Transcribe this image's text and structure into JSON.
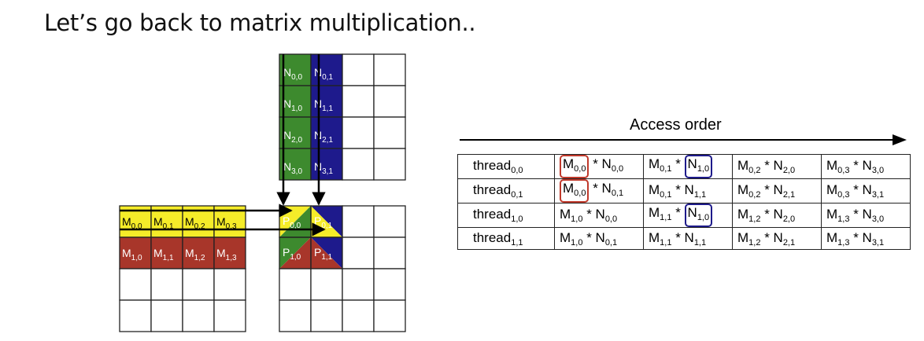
{
  "title": "Let’s go back to matrix multiplication..",
  "colors": {
    "n_col0": "#3d8a2e",
    "n_col1": "#1e1a8c",
    "m_row0": "#f5ec29",
    "m_row1": "#a8362a",
    "highlight_red": "#c0392b",
    "highlight_blue": "#1d1a8a"
  },
  "matrix_N": {
    "labels": [
      [
        "N",
        "0,0"
      ],
      [
        "N",
        "0,1"
      ],
      [
        "N",
        "1,0"
      ],
      [
        "N",
        "1,1"
      ],
      [
        "N",
        "2,0"
      ],
      [
        "N",
        "2,1"
      ],
      [
        "N",
        "3,0"
      ],
      [
        "N",
        "3,1"
      ]
    ]
  },
  "matrix_M": {
    "labels": [
      [
        "M",
        "0,0"
      ],
      [
        "M",
        "0,1"
      ],
      [
        "M",
        "0,2"
      ],
      [
        "M",
        "0,3"
      ],
      [
        "M",
        "1,0"
      ],
      [
        "M",
        "1,1"
      ],
      [
        "M",
        "1,2"
      ],
      [
        "M",
        "1,3"
      ]
    ]
  },
  "matrix_P": {
    "labels": [
      [
        "P",
        "0,0"
      ],
      [
        "P",
        "0,1"
      ],
      [
        "P",
        "1,0"
      ],
      [
        "P",
        "1,1"
      ]
    ]
  },
  "access_order": {
    "label": "Access order",
    "rows": [
      {
        "thread": [
          "thread",
          "0,0"
        ],
        "products": [
          [
            "M",
            "0,0",
            "N",
            "0,0"
          ],
          [
            "M",
            "0,1",
            "N",
            "1,0"
          ],
          [
            "M",
            "0,2",
            "N",
            "2,0"
          ],
          [
            "M",
            "0,3",
            "N",
            "3,0"
          ]
        ]
      },
      {
        "thread": [
          "thread",
          "0,1"
        ],
        "products": [
          [
            "M",
            "0,0",
            "N",
            "0,1"
          ],
          [
            "M",
            "0,1",
            "N",
            "1,1"
          ],
          [
            "M",
            "0,2",
            "N",
            "2,1"
          ],
          [
            "M",
            "0,3",
            "N",
            "3,1"
          ]
        ]
      },
      {
        "thread": [
          "thread",
          "1,0"
        ],
        "products": [
          [
            "M",
            "1,0",
            "N",
            "0,0"
          ],
          [
            "M",
            "1,1",
            "N",
            "1,0"
          ],
          [
            "M",
            "1,2",
            "N",
            "2,0"
          ],
          [
            "M",
            "1,3",
            "N",
            "3,0"
          ]
        ]
      },
      {
        "thread": [
          "thread",
          "1,1"
        ],
        "products": [
          [
            "M",
            "1,0",
            "N",
            "0,1"
          ],
          [
            "M",
            "1,1",
            "N",
            "1,1"
          ],
          [
            "M",
            "1,2",
            "N",
            "2,1"
          ],
          [
            "M",
            "1,3",
            "N",
            "3,1"
          ]
        ]
      }
    ],
    "highlights": {
      "red": [
        [
          0,
          0
        ],
        [
          1,
          0
        ]
      ],
      "blue": [
        [
          0,
          1
        ],
        [
          2,
          1
        ]
      ]
    }
  }
}
